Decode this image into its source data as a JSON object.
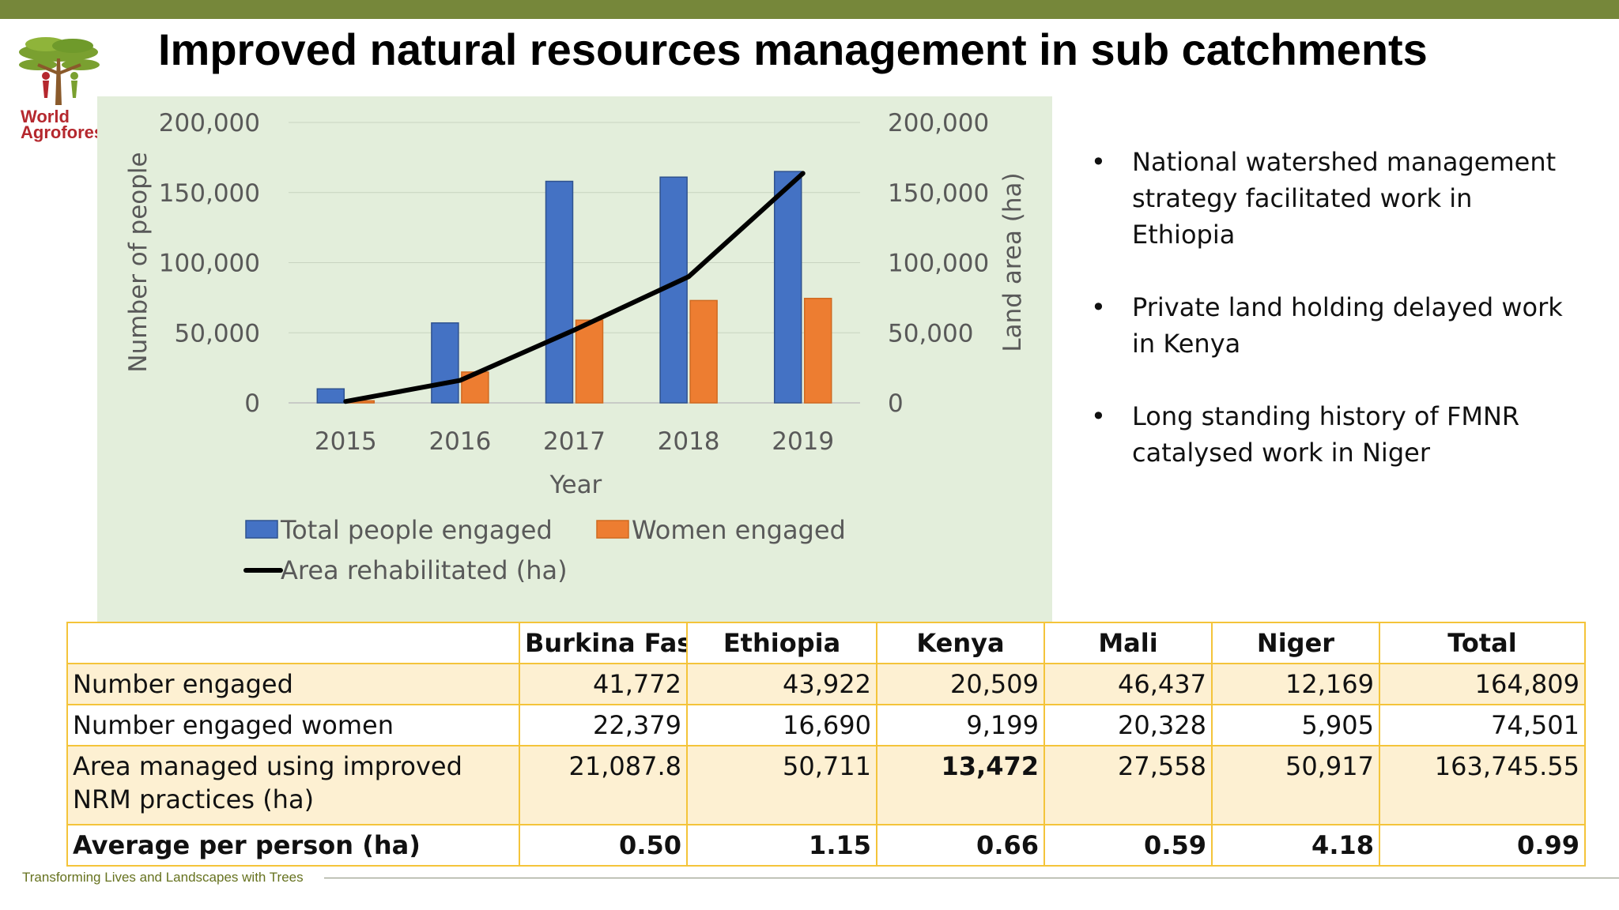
{
  "title": "Improved natural resources management in sub catchments",
  "logo": {
    "line1": "World",
    "line2": "Agrofores"
  },
  "chart_data": {
    "type": "bar",
    "categories": [
      "2015",
      "2016",
      "2017",
      "2018",
      "2019"
    ],
    "series": [
      {
        "name": "Total people engaged",
        "type": "bar",
        "axis": "left",
        "color": "#4472c4",
        "values": [
          10000,
          57000,
          158000,
          161000,
          165000
        ]
      },
      {
        "name": "Women engaged",
        "type": "bar",
        "axis": "left",
        "color": "#ed7d31",
        "values": [
          1500,
          22000,
          59000,
          73000,
          74500
        ]
      },
      {
        "name": "Area rehabilitated (ha)",
        "type": "line",
        "axis": "right",
        "color": "#000000",
        "values": [
          1000,
          16000,
          52000,
          90000,
          163700
        ]
      }
    ],
    "xlabel": "Year",
    "ylabel": "Number of people",
    "y2label": "Land area (ha)",
    "ylim": [
      0,
      200000
    ],
    "y2lim": [
      0,
      200000
    ],
    "yticks": [
      "0",
      "50,000",
      "100,000",
      "150,000",
      "200,000"
    ],
    "y2ticks": [
      "0",
      "50,000",
      "100,000",
      "150,000",
      "200,000"
    ],
    "grid": true,
    "legend": "bottom",
    "background": "#e3eedb"
  },
  "bullets": [
    "National watershed management strategy facilitated work in Ethiopia",
    "Private land holding delayed work in Kenya",
    "Long standing history of FMNR catalysed work in Niger"
  ],
  "table": {
    "headers": [
      "",
      "Burkina Faso",
      "Ethiopia",
      "Kenya",
      "Mali",
      "Niger",
      "Total"
    ],
    "rows": [
      {
        "label": "Number engaged",
        "values": [
          "41,772",
          "43,922",
          "20,509",
          "46,437",
          "12,169",
          "164,809"
        ]
      },
      {
        "label": "Number engaged women",
        "values": [
          "22,379",
          "16,690",
          "9,199",
          "20,328",
          "5,905",
          "74,501"
        ]
      },
      {
        "label": "Area managed using improved NRM practices (ha)",
        "values": [
          "21,087.8",
          "50,711",
          "13,472",
          "27,558",
          "50,917",
          "163,745.55"
        ]
      },
      {
        "label": "Average per person (ha)",
        "values": [
          "0.50",
          "1.15",
          "0.66",
          "0.59",
          "4.18",
          "0.99"
        ]
      }
    ]
  },
  "footer": "Transforming Lives and Landscapes with Trees",
  "colors": {
    "topbar": "#76873a",
    "table_border": "#f4c43a",
    "table_alt_row": "#fdf0d2",
    "logo_text": "#b5282e"
  }
}
